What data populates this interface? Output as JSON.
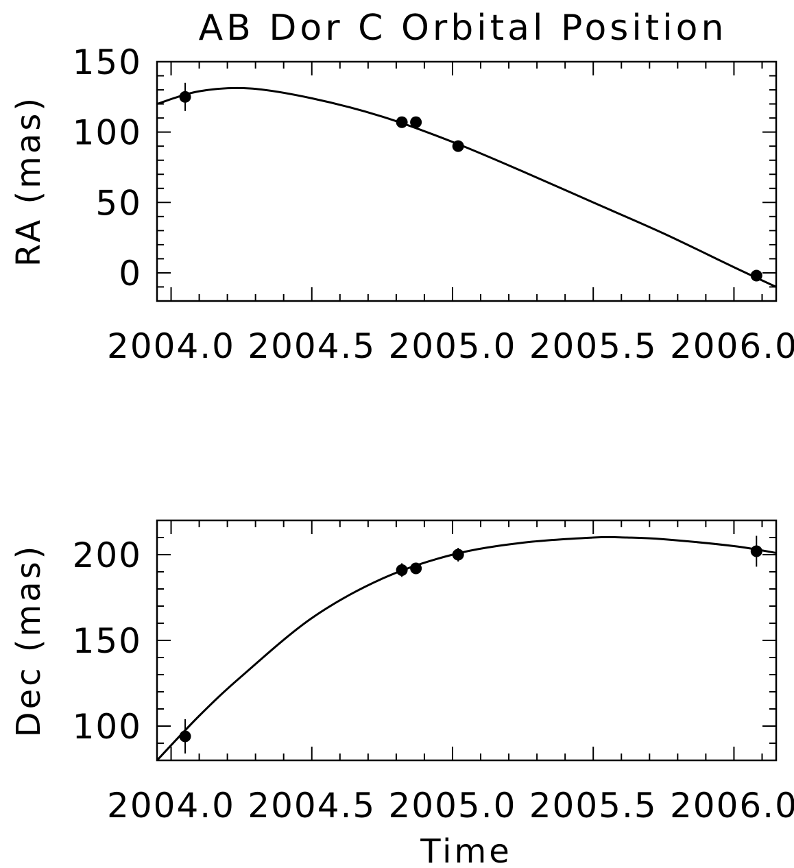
{
  "chart_data": [
    {
      "type": "scatter",
      "title": "AB Dor C Orbital Position",
      "xlabel": "",
      "ylabel": "RA (mas)",
      "xlim": [
        2003.95,
        2006.15
      ],
      "ylim": [
        -20,
        150
      ],
      "x_ticks": [
        2004.0,
        2004.5,
        2005.0,
        2005.5,
        2006.0
      ],
      "x_tick_labels": [
        "2004.0",
        "2004.5",
        "2005.0",
        "2005.5",
        "2006.0"
      ],
      "y_ticks": [
        0,
        50,
        100,
        150
      ],
      "y_tick_labels": [
        "0",
        "50",
        "100",
        "150"
      ],
      "series": [
        {
          "kind": "points",
          "x": [
            2004.05,
            2004.82,
            2004.87,
            2005.02,
            2006.08
          ],
          "y": [
            125,
            107,
            107,
            90,
            -2
          ],
          "yerr": [
            10,
            4,
            3,
            4,
            3
          ]
        },
        {
          "kind": "line",
          "x": [
            2003.95,
            2004.1,
            2004.28,
            2004.5,
            2004.75,
            2005.0,
            2005.25,
            2005.5,
            2005.75,
            2006.0,
            2006.15
          ],
          "y": [
            120,
            129,
            131,
            124,
            111,
            93,
            72,
            50,
            28,
            4,
            -10
          ]
        }
      ],
      "grid": false,
      "legend": "none"
    },
    {
      "type": "scatter",
      "title": "",
      "xlabel": "Time",
      "ylabel": "Dec (mas)",
      "xlim": [
        2003.95,
        2006.15
      ],
      "ylim": [
        80,
        220
      ],
      "x_ticks": [
        2004.0,
        2004.5,
        2005.0,
        2005.5,
        2006.0
      ],
      "x_tick_labels": [
        "2004.0",
        "2004.5",
        "2005.0",
        "2005.5",
        "2006.0"
      ],
      "y_ticks": [
        100,
        150,
        200
      ],
      "y_tick_labels": [
        "100",
        "150",
        "200"
      ],
      "series": [
        {
          "kind": "points",
          "x": [
            2004.05,
            2004.82,
            2004.87,
            2005.02,
            2006.08
          ],
          "y": [
            94,
            191,
            192,
            200,
            202
          ],
          "yerr": [
            10,
            4,
            3,
            4,
            9
          ]
        },
        {
          "kind": "line",
          "x": [
            2003.95,
            2004.1,
            2004.25,
            2004.5,
            2004.75,
            2005.0,
            2005.25,
            2005.5,
            2005.62,
            2005.75,
            2006.0,
            2006.15
          ],
          "y": [
            80,
            106,
            129,
            163,
            186,
            200,
            207,
            210,
            210,
            209,
            205,
            201
          ]
        }
      ],
      "grid": false,
      "legend": "none"
    }
  ]
}
